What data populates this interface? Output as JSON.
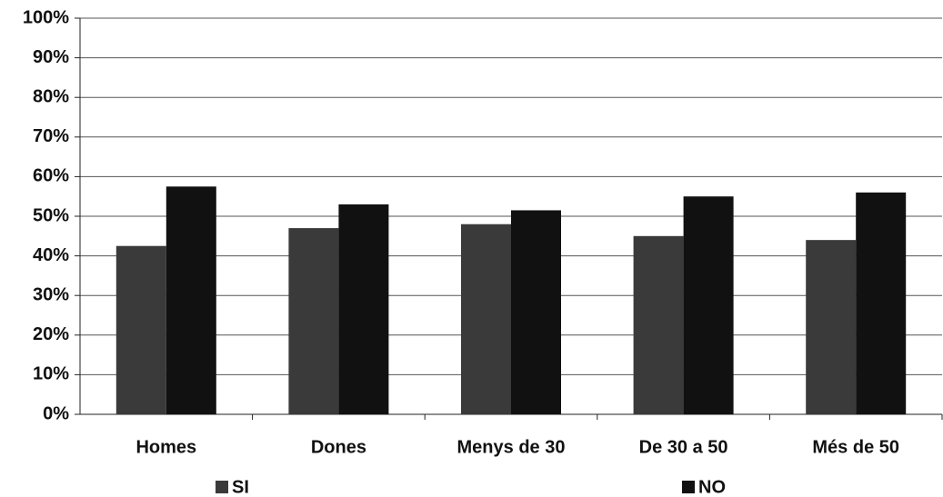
{
  "chart_data": {
    "type": "bar",
    "categories": [
      "Homes",
      "Dones",
      "Menys de 30",
      "De 30 a 50",
      "Més de 50"
    ],
    "series": [
      {
        "name": "SI",
        "color": "#3a3a3a",
        "values": [
          42.5,
          47,
          48,
          45,
          44
        ]
      },
      {
        "name": "NO",
        "color": "#111111",
        "values": [
          57.5,
          53,
          51.5,
          55,
          56
        ]
      }
    ],
    "ylim": [
      0,
      100
    ],
    "yticks": [
      {
        "value": 0,
        "label": "0%"
      },
      {
        "value": 10,
        "label": "10%"
      },
      {
        "value": 20,
        "label": "20%"
      },
      {
        "value": 30,
        "label": "30%"
      },
      {
        "value": 40,
        "label": "40%"
      },
      {
        "value": 50,
        "label": "50%"
      },
      {
        "value": 60,
        "label": "60%"
      },
      {
        "value": 70,
        "label": "70%"
      },
      {
        "value": 80,
        "label": "80%"
      },
      {
        "value": 90,
        "label": "90%"
      },
      {
        "value": 100,
        "label": "100%"
      }
    ],
    "grid": true,
    "legend": "bottom"
  }
}
